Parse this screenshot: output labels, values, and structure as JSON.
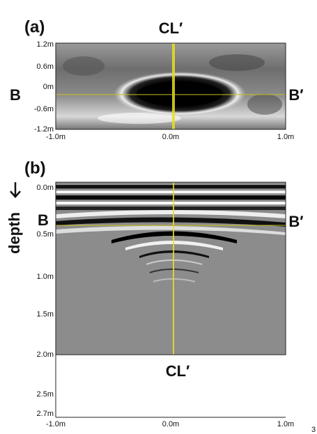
{
  "panels": [
    {
      "label": "(a)",
      "top_label": "CL′",
      "left_label": "B",
      "right_label": "B′",
      "y_axis_labels": [
        "1.2m",
        "0.6m",
        "0m",
        "-0.6m",
        "-1.2m"
      ],
      "x_axis_labels": [
        "-1.0m",
        "0.0m",
        "1.0m"
      ]
    },
    {
      "label": "(b)",
      "bottom_label": "CL′",
      "left_label": "B",
      "right_label": "B′",
      "axis_title": "depth",
      "y_axis_labels": [
        "0.0m",
        "0.5m",
        "1.0m",
        "1.5m",
        "2.0m",
        "2.5m",
        "2.7m"
      ],
      "x_axis_labels": [
        "-1.0m",
        "0.0m",
        "1.0m"
      ]
    }
  ],
  "page_number": "3"
}
